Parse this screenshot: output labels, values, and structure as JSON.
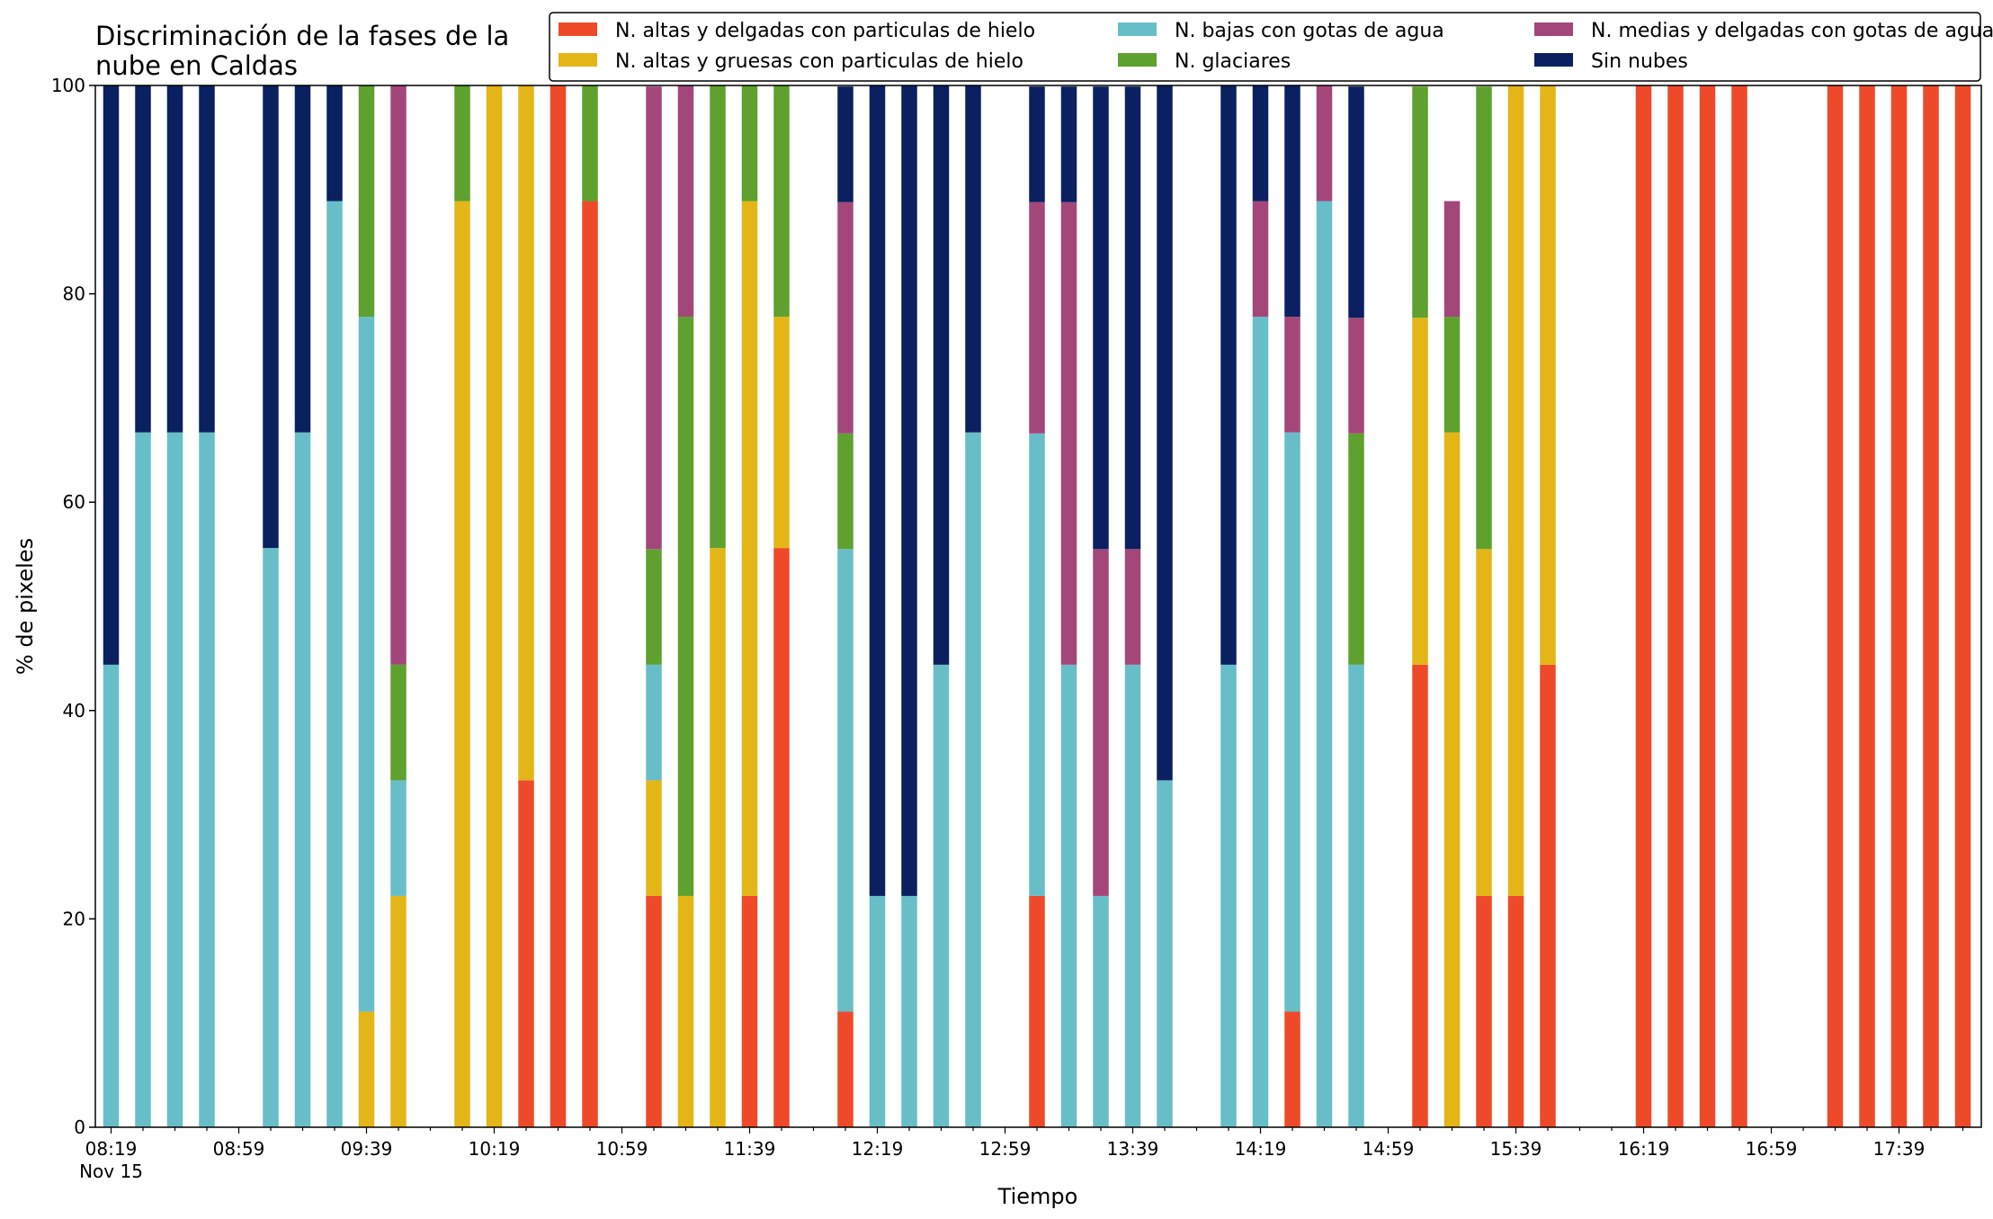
{
  "chart_data": {
    "type": "bar",
    "stacked": true,
    "title_lines": [
      "Discriminación de la fases de la",
      "nube en Caldas"
    ],
    "xlabel": "Tiempo",
    "ylabel": "% de pixeles",
    "ylim": [
      0,
      100
    ],
    "yticks": [
      "0",
      "20",
      "40",
      "60",
      "80",
      "100"
    ],
    "xtick_labels": [
      "08:19",
      "08:59",
      "09:39",
      "10:19",
      "10:59",
      "11:39",
      "12:19",
      "12:59",
      "13:39",
      "14:19",
      "14:59",
      "15:39",
      "16:19",
      "16:59",
      "17:39"
    ],
    "xtick_sublabel": "Nov 15",
    "x_start": "08:19",
    "x_end": "17:59",
    "x_step_minutes": 10,
    "legend_placement": "top-right",
    "grid": false,
    "series": [
      {
        "name": "N. altas y delgadas con particulas de hielo",
        "color": "#EE4A2A",
        "values": [
          0,
          0,
          0,
          0,
          null,
          0,
          0,
          0,
          0,
          0,
          null,
          0,
          0,
          33.3,
          100,
          88.9,
          null,
          22.2,
          0,
          0,
          22.2,
          55.6,
          null,
          11.1,
          0,
          0,
          0,
          0,
          null,
          22.2,
          0,
          0,
          0,
          0,
          null,
          0,
          0,
          11.1,
          0,
          0,
          null,
          44.4,
          0,
          22.2,
          22.2,
          44.4,
          null,
          null,
          100,
          100,
          100,
          100,
          null,
          null,
          100,
          100,
          100,
          100,
          100
        ]
      },
      {
        "name": "N. altas y gruesas con particulas de hielo",
        "color": "#E3B517",
        "values": [
          0,
          0,
          0,
          0,
          null,
          0,
          0,
          0,
          11.1,
          22.2,
          null,
          88.9,
          100,
          66.7,
          0,
          0,
          null,
          11.1,
          22.2,
          55.6,
          66.7,
          22.2,
          null,
          0,
          0,
          0,
          0,
          0,
          null,
          0,
          0,
          0,
          0,
          0,
          null,
          0,
          0,
          0,
          0,
          0,
          null,
          33.3,
          66.7,
          33.3,
          77.8,
          55.6,
          null,
          null,
          0,
          0,
          0,
          0,
          null,
          null,
          0,
          0,
          0,
          0,
          0
        ]
      },
      {
        "name": "N. bajas con gotas de agua",
        "color": "#68BEC8",
        "values": [
          44.4,
          66.7,
          66.7,
          66.7,
          null,
          55.6,
          66.7,
          88.9,
          66.7,
          11.1,
          null,
          0,
          0,
          0,
          0,
          0,
          null,
          11.1,
          0,
          0,
          0,
          0,
          null,
          44.4,
          22.2,
          22.2,
          44.4,
          66.7,
          null,
          44.4,
          44.4,
          22.2,
          44.4,
          33.3,
          null,
          44.4,
          77.8,
          55.6,
          88.9,
          44.4,
          null,
          0,
          0,
          0,
          0,
          0,
          null,
          null,
          0,
          0,
          0,
          0,
          null,
          null,
          0,
          0,
          0,
          0,
          0
        ]
      },
      {
        "name": "N. glaciares",
        "color": "#5EA12E",
        "values": [
          0,
          0,
          0,
          0,
          null,
          0,
          0,
          0,
          22.2,
          11.1,
          null,
          11.1,
          0,
          0,
          0,
          11.1,
          null,
          11.1,
          55.6,
          44.4,
          11.1,
          22.2,
          null,
          11.1,
          0,
          0,
          0,
          0,
          null,
          0,
          0,
          0,
          0,
          0,
          null,
          0,
          0,
          0,
          0,
          22.2,
          null,
          22.2,
          11.1,
          44.4,
          0,
          0,
          null,
          null,
          0,
          0,
          0,
          0,
          null,
          null,
          0,
          0,
          0,
          0,
          0
        ]
      },
      {
        "name": "N. medias y delgadas con gotas de agua",
        "color": "#A3477A",
        "values": [
          0,
          0,
          0,
          0,
          null,
          0,
          0,
          0,
          0,
          55.6,
          null,
          0,
          0,
          0,
          0,
          0,
          null,
          44.4,
          22.2,
          0,
          0,
          0,
          null,
          22.2,
          0,
          0,
          0,
          0,
          null,
          22.2,
          44.4,
          33.3,
          11.1,
          0,
          null,
          0,
          11.1,
          11.1,
          11.1,
          11.1,
          null,
          0,
          11.1,
          0,
          0,
          0,
          null,
          null,
          0,
          0,
          0,
          0,
          null,
          null,
          0,
          0,
          0,
          0,
          0
        ]
      },
      {
        "name": "Sin nubes",
        "color": "#0A2060",
        "values": [
          55.6,
          33.3,
          33.3,
          33.3,
          null,
          44.4,
          33.3,
          11.1,
          0,
          0,
          null,
          0,
          0,
          0,
          0,
          0,
          null,
          0,
          0,
          0,
          0,
          0,
          null,
          11.1,
          77.8,
          77.8,
          55.6,
          33.3,
          null,
          11.1,
          11.1,
          44.4,
          44.4,
          66.7,
          null,
          55.6,
          11.1,
          22.2,
          0,
          22.2,
          null,
          0,
          0,
          0,
          0,
          0,
          null,
          null,
          0,
          0,
          0,
          0,
          null,
          null,
          0,
          0,
          0,
          0,
          0
        ]
      }
    ]
  }
}
